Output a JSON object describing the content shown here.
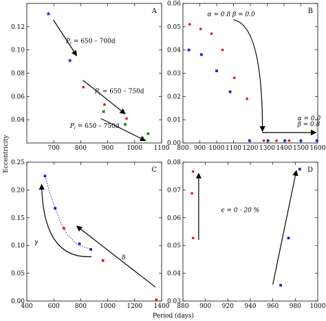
{
  "xlabel": "Period (days)",
  "ylabel": "Eccentricity",
  "colors": {
    "blue": "#1f1fd6",
    "red": "#e0201c",
    "green": "#1a8a1a",
    "black": "#000000"
  },
  "chart_data": [
    {
      "type": "scatter",
      "panel": "A",
      "xlim": [
        600,
        1100
      ],
      "ylim": [
        0.02,
        0.14
      ],
      "xticks": [
        700,
        800,
        900,
        1000,
        1100
      ],
      "xtick_labels": [
        "700",
        "800",
        "900",
        "1000",
        "1100"
      ],
      "yticks": [
        0.04,
        0.06,
        0.08,
        0.1,
        0.12
      ],
      "ytick_labels": [
        "0.04",
        "0.06",
        "0.08",
        "0.10",
        "0.12"
      ],
      "series": [
        {
          "color": "blue",
          "marker": "star",
          "x": [
            680,
            760
          ],
          "y": [
            0.131,
            0.091
          ]
        },
        {
          "color": "red",
          "marker": "dot",
          "x": [
            810,
            888,
            970
          ],
          "y": [
            0.068,
            0.053,
            0.041
          ]
        },
        {
          "color": "green",
          "marker": "square",
          "x": [
            885,
            965,
            1050
          ],
          "y": [
            0.047,
            0.036,
            0.028
          ]
        }
      ],
      "arrows": [
        {
          "from": [
            698,
            0.126
          ],
          "to": [
            785,
            0.095
          ]
        },
        {
          "from": [
            808,
            0.074
          ],
          "to": [
            965,
            0.045
          ]
        },
        {
          "from": [
            875,
            0.041
          ],
          "to": [
            1040,
            0.022
          ]
        }
      ],
      "annotations": [
        {
          "text": "P_i = 650 – 700d",
          "x": 745,
          "y": 0.106
        },
        {
          "text": "P_i = 650 – 750d",
          "x": 852,
          "y": 0.063
        },
        {
          "text": "P_i = 650 – 750d",
          "x": 760,
          "y": 0.033
        }
      ]
    },
    {
      "type": "scatter",
      "panel": "B",
      "xlim": [
        800,
        1600
      ],
      "ylim": [
        0,
        0.06
      ],
      "xticks": [
        800,
        900,
        1000,
        1100,
        1200,
        1300,
        1400,
        1500,
        1600
      ],
      "xtick_labels": [
        "800",
        "900",
        "1000",
        "1100",
        "1200",
        "1300",
        "1400",
        "1500",
        "1600"
      ],
      "yticks": [
        0,
        0.01,
        0.02,
        0.03,
        0.04,
        0.05,
        0.06
      ],
      "ytick_labels": [
        "0.00",
        "0.01",
        "0.02",
        "0.03",
        "0.04",
        "0.05",
        "0.06"
      ],
      "series": [
        {
          "color": "red",
          "marker": "dot",
          "x": [
            840,
            905,
            970,
            1035,
            1105,
            1180,
            1280,
            1355,
            1430
          ],
          "y": [
            0.051,
            0.049,
            0.047,
            0.04,
            0.028,
            0.019,
            0.001,
            0.001,
            0.001
          ]
        },
        {
          "color": "blue",
          "marker": "square",
          "x": [
            835,
            910,
            1000,
            1080,
            1195,
            1305,
            1405,
            1500,
            1595
          ],
          "y": [
            0.04,
            0.038,
            0.031,
            0.022,
            0.001,
            0.001,
            0.001,
            0.001,
            0.001
          ]
        }
      ],
      "arrows": [
        {
          "from": [
            1100,
            0.053
          ],
          "to": [
            1272,
            0.005
          ],
          "curved": true
        },
        {
          "from": [
            1270,
            0.0045
          ],
          "to": [
            1590,
            0.0045
          ]
        }
      ],
      "annotations": [
        {
          "text": "α = 0.8  β = 0.0",
          "x": 945,
          "y": 0.0545
        },
        {
          "text": "α = 0.0",
          "x": 1480,
          "y": 0.0098
        },
        {
          "text": "β = 0.8",
          "x": 1480,
          "y": 0.0072
        }
      ]
    },
    {
      "type": "scatter",
      "panel": "C",
      "xlim": [
        400,
        1400
      ],
      "ylim": [
        0,
        0.25
      ],
      "xticks": [
        400,
        600,
        800,
        1000,
        1200,
        1400
      ],
      "xtick_labels": [
        "400",
        "600",
        "800",
        "1000",
        "1200",
        "1400"
      ],
      "yticks": [
        0,
        0.05,
        0.1,
        0.15,
        0.2,
        0.25
      ],
      "ytick_labels": [
        "0.00",
        "0.05",
        "0.10",
        "0.15",
        "0.20",
        "0.25"
      ],
      "series": [
        {
          "color": "blue",
          "marker": "square",
          "x": [
            535,
            610,
            790,
            875
          ],
          "y": [
            0.225,
            0.167,
            0.103,
            0.093
          ]
        },
        {
          "color": "red",
          "marker": "square",
          "x": [
            675,
            965,
            1360
          ],
          "y": [
            0.131,
            0.073,
            0.002
          ]
        }
      ],
      "dotted_curve": {
        "x": [
          535,
          570,
          610,
          650,
          700,
          760,
          820,
          875
        ],
        "y": [
          0.225,
          0.195,
          0.167,
          0.142,
          0.12,
          0.105,
          0.098,
          0.093
        ]
      },
      "arrows": [
        {
          "from": [
            880,
            0.08
          ],
          "to": [
            510,
            0.21
          ],
          "curved": true
        },
        {
          "from": [
            1355,
            0.025
          ],
          "to": [
            770,
            0.135
          ]
        }
      ],
      "annotations": [
        {
          "text": "γ",
          "x": 455,
          "y": 0.103
        },
        {
          "text": "δ",
          "x": 1105,
          "y": 0.075
        }
      ]
    },
    {
      "type": "scatter",
      "panel": "D",
      "xlim": [
        880,
        1000
      ],
      "ylim": [
        0.03,
        0.08
      ],
      "xticks": [
        880,
        900,
        920,
        940,
        960,
        980,
        1000
      ],
      "xtick_labels": [
        "880",
        "900",
        "920",
        "940",
        "960",
        "980",
        "1000"
      ],
      "yticks": [
        0.03,
        0.04,
        0.05,
        0.06,
        0.07,
        0.08
      ],
      "ytick_labels": [
        "0.03",
        "0.04",
        "0.05",
        "0.06",
        "0.07",
        "0.08"
      ],
      "series": [
        {
          "color": "red",
          "marker": "dot",
          "x": [
            889,
            888,
            889
          ],
          "y": [
            0.0527,
            0.0688,
            0.0766
          ]
        },
        {
          "color": "blue",
          "marker": "square",
          "x": [
            967,
            974,
            984
          ],
          "y": [
            0.0357,
            0.0527,
            0.0775
          ]
        }
      ],
      "arrows": [
        {
          "from": [
            894,
            0.052
          ],
          "to": [
            894,
            0.076
          ]
        },
        {
          "from": [
            960,
            0.036
          ],
          "to": [
            981,
            0.077
          ]
        }
      ],
      "annotations": [
        {
          "text": "ϵ = 0 - 20 %",
          "x": 914,
          "y": 0.062
        }
      ]
    }
  ]
}
